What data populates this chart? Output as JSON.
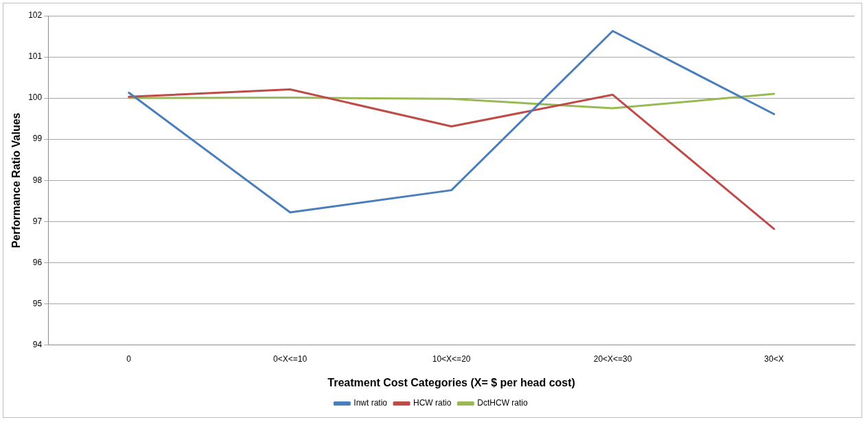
{
  "chart_data": {
    "type": "line",
    "xlabel": "Treatment Cost Categories (X= $ per head cost)",
    "ylabel": "Performance Ratio Values",
    "categories": [
      "0",
      "0<X<=10",
      "10<X<=20",
      "20<X<=30",
      "30<X"
    ],
    "series": [
      {
        "name": "Inwt ratio",
        "color": "#4a7ebb",
        "values": [
          100.13,
          97.22,
          97.76,
          101.63,
          99.61
        ]
      },
      {
        "name": "HCW ratio",
        "color": "#be4b48",
        "values": [
          100.03,
          100.21,
          99.31,
          100.08,
          96.82
        ]
      },
      {
        "name": "DctHCW ratio",
        "color": "#98b954",
        "values": [
          100,
          100.01,
          99.98,
          99.75,
          100.1
        ]
      }
    ],
    "ylim": [
      94,
      102
    ],
    "yticks": [
      94,
      95,
      96,
      97,
      98,
      99,
      100,
      101,
      102
    ],
    "grid": "y",
    "legend": "bottom",
    "marker": "none",
    "line_style": "solid"
  }
}
